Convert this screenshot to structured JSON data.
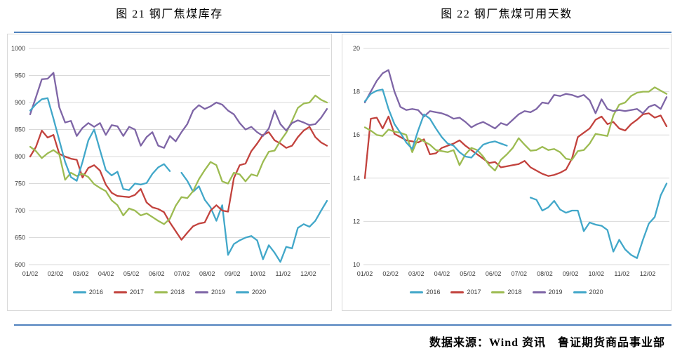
{
  "page": {
    "source_label": "数据来源：Wind 资讯　鲁证期货商品事业部",
    "accent_rule_color": "#4F81BD",
    "background_color": "#FFFFFF"
  },
  "chart_data": [
    {
      "id": "fig21",
      "title": "图 21  钢厂焦煤库存",
      "type": "line",
      "x_unit": "weekly, Jan-Dec",
      "x_tick_labels": [
        "01/02",
        "02/02",
        "03/02",
        "04/02",
        "05/02",
        "06/02",
        "07/02",
        "08/02",
        "09/02",
        "10/02",
        "11/02",
        "12/02"
      ],
      "ylim": [
        600,
        1000
      ],
      "y_ticks": [
        600,
        650,
        700,
        750,
        800,
        850,
        900,
        950,
        1000
      ],
      "grid": "horizontal",
      "legend_position": "bottom",
      "series": [
        {
          "name": "2016",
          "color": "#41A7C9",
          "values": [
            null,
            null,
            null,
            null,
            null,
            null,
            null,
            null,
            null,
            null,
            null,
            null,
            null,
            null,
            null,
            null,
            null,
            null,
            null,
            null,
            null,
            null,
            null,
            null,
            null,
            null,
            770,
            755,
            735,
            745,
            720,
            706,
            681,
            710,
            618,
            638,
            645,
            650,
            653,
            645,
            610,
            636,
            622,
            605,
            633,
            630,
            668,
            675,
            670,
            681,
            700,
            718
          ]
        },
        {
          "name": "2017",
          "color": "#C2423D",
          "values": [
            800,
            818,
            848,
            835,
            840,
            805,
            800,
            796,
            794,
            761,
            779,
            784,
            774,
            748,
            733,
            727,
            726,
            725,
            729,
            740,
            715,
            706,
            703,
            697,
            678,
            662,
            646,
            659,
            671,
            676,
            678,
            700,
            710,
            700,
            698,
            760,
            784,
            787,
            810,
            824,
            840,
            845,
            830,
            824,
            816,
            820,
            836,
            848,
            855,
            836,
            826,
            820
          ]
        },
        {
          "name": "2018",
          "color": "#9CBB51",
          "values": [
            818,
            810,
            797,
            806,
            812,
            804,
            757,
            770,
            764,
            768,
            762,
            749,
            742,
            736,
            719,
            710,
            691,
            704,
            700,
            691,
            695,
            688,
            681,
            675,
            685,
            709,
            725,
            723,
            736,
            758,
            775,
            790,
            784,
            754,
            750,
            770,
            767,
            754,
            767,
            764,
            790,
            809,
            811,
            829,
            844,
            866,
            890,
            898,
            900,
            913,
            905,
            900
          ]
        },
        {
          "name": "2019",
          "color": "#7E65A6",
          "values": [
            878,
            910,
            943,
            944,
            955,
            891,
            863,
            866,
            838,
            853,
            862,
            855,
            862,
            840,
            858,
            856,
            838,
            855,
            850,
            820,
            836,
            845,
            820,
            816,
            838,
            828,
            845,
            860,
            885,
            895,
            888,
            893,
            900,
            896,
            885,
            878,
            862,
            850,
            855,
            845,
            838,
            852,
            885,
            860,
            848,
            862,
            867,
            863,
            858,
            860,
            872,
            888
          ]
        },
        {
          "name": "2020",
          "color": "#41A7C9",
          "values": [
            885,
            897,
            906,
            908,
            870,
            830,
            790,
            762,
            755,
            790,
            830,
            850,
            812,
            775,
            765,
            772,
            740,
            738,
            750,
            748,
            751,
            768,
            780,
            786,
            773,
            null,
            null,
            null,
            null,
            null,
            null,
            null,
            null,
            null,
            null,
            null,
            null,
            null,
            null,
            null,
            null,
            null,
            null,
            null,
            null,
            null,
            null,
            null,
            null,
            null,
            null,
            null
          ]
        }
      ]
    },
    {
      "id": "fig22",
      "title": "图 22  钢厂焦煤可用天数",
      "type": "line",
      "x_unit": "weekly, Jan-Dec",
      "x_tick_labels": [
        "01/02",
        "02/02",
        "03/02",
        "04/02",
        "05/02",
        "06/02",
        "07/02",
        "08/02",
        "09/02",
        "10/02",
        "11/02",
        "12/02"
      ],
      "ylim": [
        10,
        20
      ],
      "y_ticks": [
        10,
        12,
        14,
        16,
        18,
        20
      ],
      "grid": "horizontal",
      "legend_position": "bottom",
      "series": [
        {
          "name": "2016",
          "color": "#41A7C9",
          "values": [
            null,
            null,
            null,
            null,
            null,
            null,
            null,
            null,
            null,
            null,
            null,
            null,
            null,
            null,
            null,
            null,
            null,
            null,
            null,
            null,
            null,
            null,
            null,
            null,
            null,
            null,
            null,
            null,
            13.1,
            13.0,
            12.5,
            12.65,
            12.95,
            12.55,
            12.4,
            12.5,
            12.5,
            11.55,
            11.95,
            11.85,
            11.8,
            11.6,
            10.6,
            11.15,
            10.7,
            10.45,
            10.3,
            11.15,
            11.9,
            12.2,
            13.2,
            13.75
          ]
        },
        {
          "name": "2017",
          "color": "#C2423D",
          "values": [
            14.0,
            16.75,
            16.8,
            16.3,
            16.85,
            16.05,
            15.9,
            15.75,
            15.7,
            15.65,
            15.8,
            15.1,
            15.15,
            15.4,
            15.5,
            15.6,
            15.75,
            15.5,
            15.3,
            15.1,
            14.9,
            14.7,
            14.75,
            14.5,
            14.55,
            14.6,
            14.65,
            14.8,
            14.5,
            14.35,
            14.2,
            14.1,
            14.15,
            14.25,
            14.4,
            14.9,
            15.9,
            16.1,
            16.3,
            16.7,
            16.85,
            16.5,
            16.6,
            16.3,
            16.2,
            16.5,
            16.7,
            16.95,
            17.0,
            16.8,
            16.9,
            16.4
          ]
        },
        {
          "name": "2018",
          "color": "#9CBB51",
          "values": [
            16.35,
            16.2,
            16.0,
            15.95,
            16.25,
            16.15,
            16.1,
            16.0,
            15.2,
            15.85,
            15.7,
            15.55,
            15.3,
            15.25,
            15.2,
            15.3,
            14.6,
            15.1,
            15.4,
            15.3,
            15.0,
            14.6,
            14.35,
            14.85,
            15.1,
            15.4,
            15.85,
            15.55,
            15.27,
            15.3,
            15.45,
            15.3,
            15.35,
            15.2,
            14.9,
            14.85,
            15.25,
            15.3,
            15.6,
            16.05,
            16.0,
            15.95,
            16.9,
            17.4,
            17.5,
            17.8,
            17.95,
            18.0,
            18.0,
            18.2,
            18.05,
            17.9
          ]
        },
        {
          "name": "2019",
          "color": "#7E65A6",
          "values": [
            17.5,
            18.0,
            18.5,
            18.85,
            19.0,
            18.0,
            17.3,
            17.15,
            17.2,
            17.15,
            16.85,
            17.1,
            17.05,
            17.0,
            16.9,
            16.75,
            16.8,
            16.6,
            16.35,
            16.5,
            16.6,
            16.45,
            16.3,
            16.55,
            16.45,
            16.7,
            16.95,
            17.1,
            17.05,
            17.2,
            17.5,
            17.45,
            17.85,
            17.8,
            17.9,
            17.85,
            17.75,
            17.85,
            17.6,
            17.0,
            17.65,
            17.2,
            17.1,
            17.15,
            17.1,
            17.15,
            17.2,
            17.0,
            17.3,
            17.4,
            17.2,
            17.75
          ]
        },
        {
          "name": "2020",
          "color": "#41A7C9",
          "values": [
            17.55,
            17.9,
            18.05,
            18.1,
            17.2,
            16.5,
            16.1,
            15.65,
            15.35,
            16.2,
            16.95,
            16.75,
            16.3,
            15.9,
            15.6,
            15.5,
            15.2,
            15.0,
            14.95,
            15.25,
            15.55,
            15.65,
            15.7,
            15.6,
            15.5,
            null,
            null,
            null,
            null,
            null,
            null,
            null,
            null,
            null,
            null,
            null,
            null,
            null,
            null,
            null,
            null,
            null,
            null,
            null,
            null,
            null,
            null,
            null,
            null,
            null,
            null,
            null
          ]
        }
      ]
    }
  ]
}
